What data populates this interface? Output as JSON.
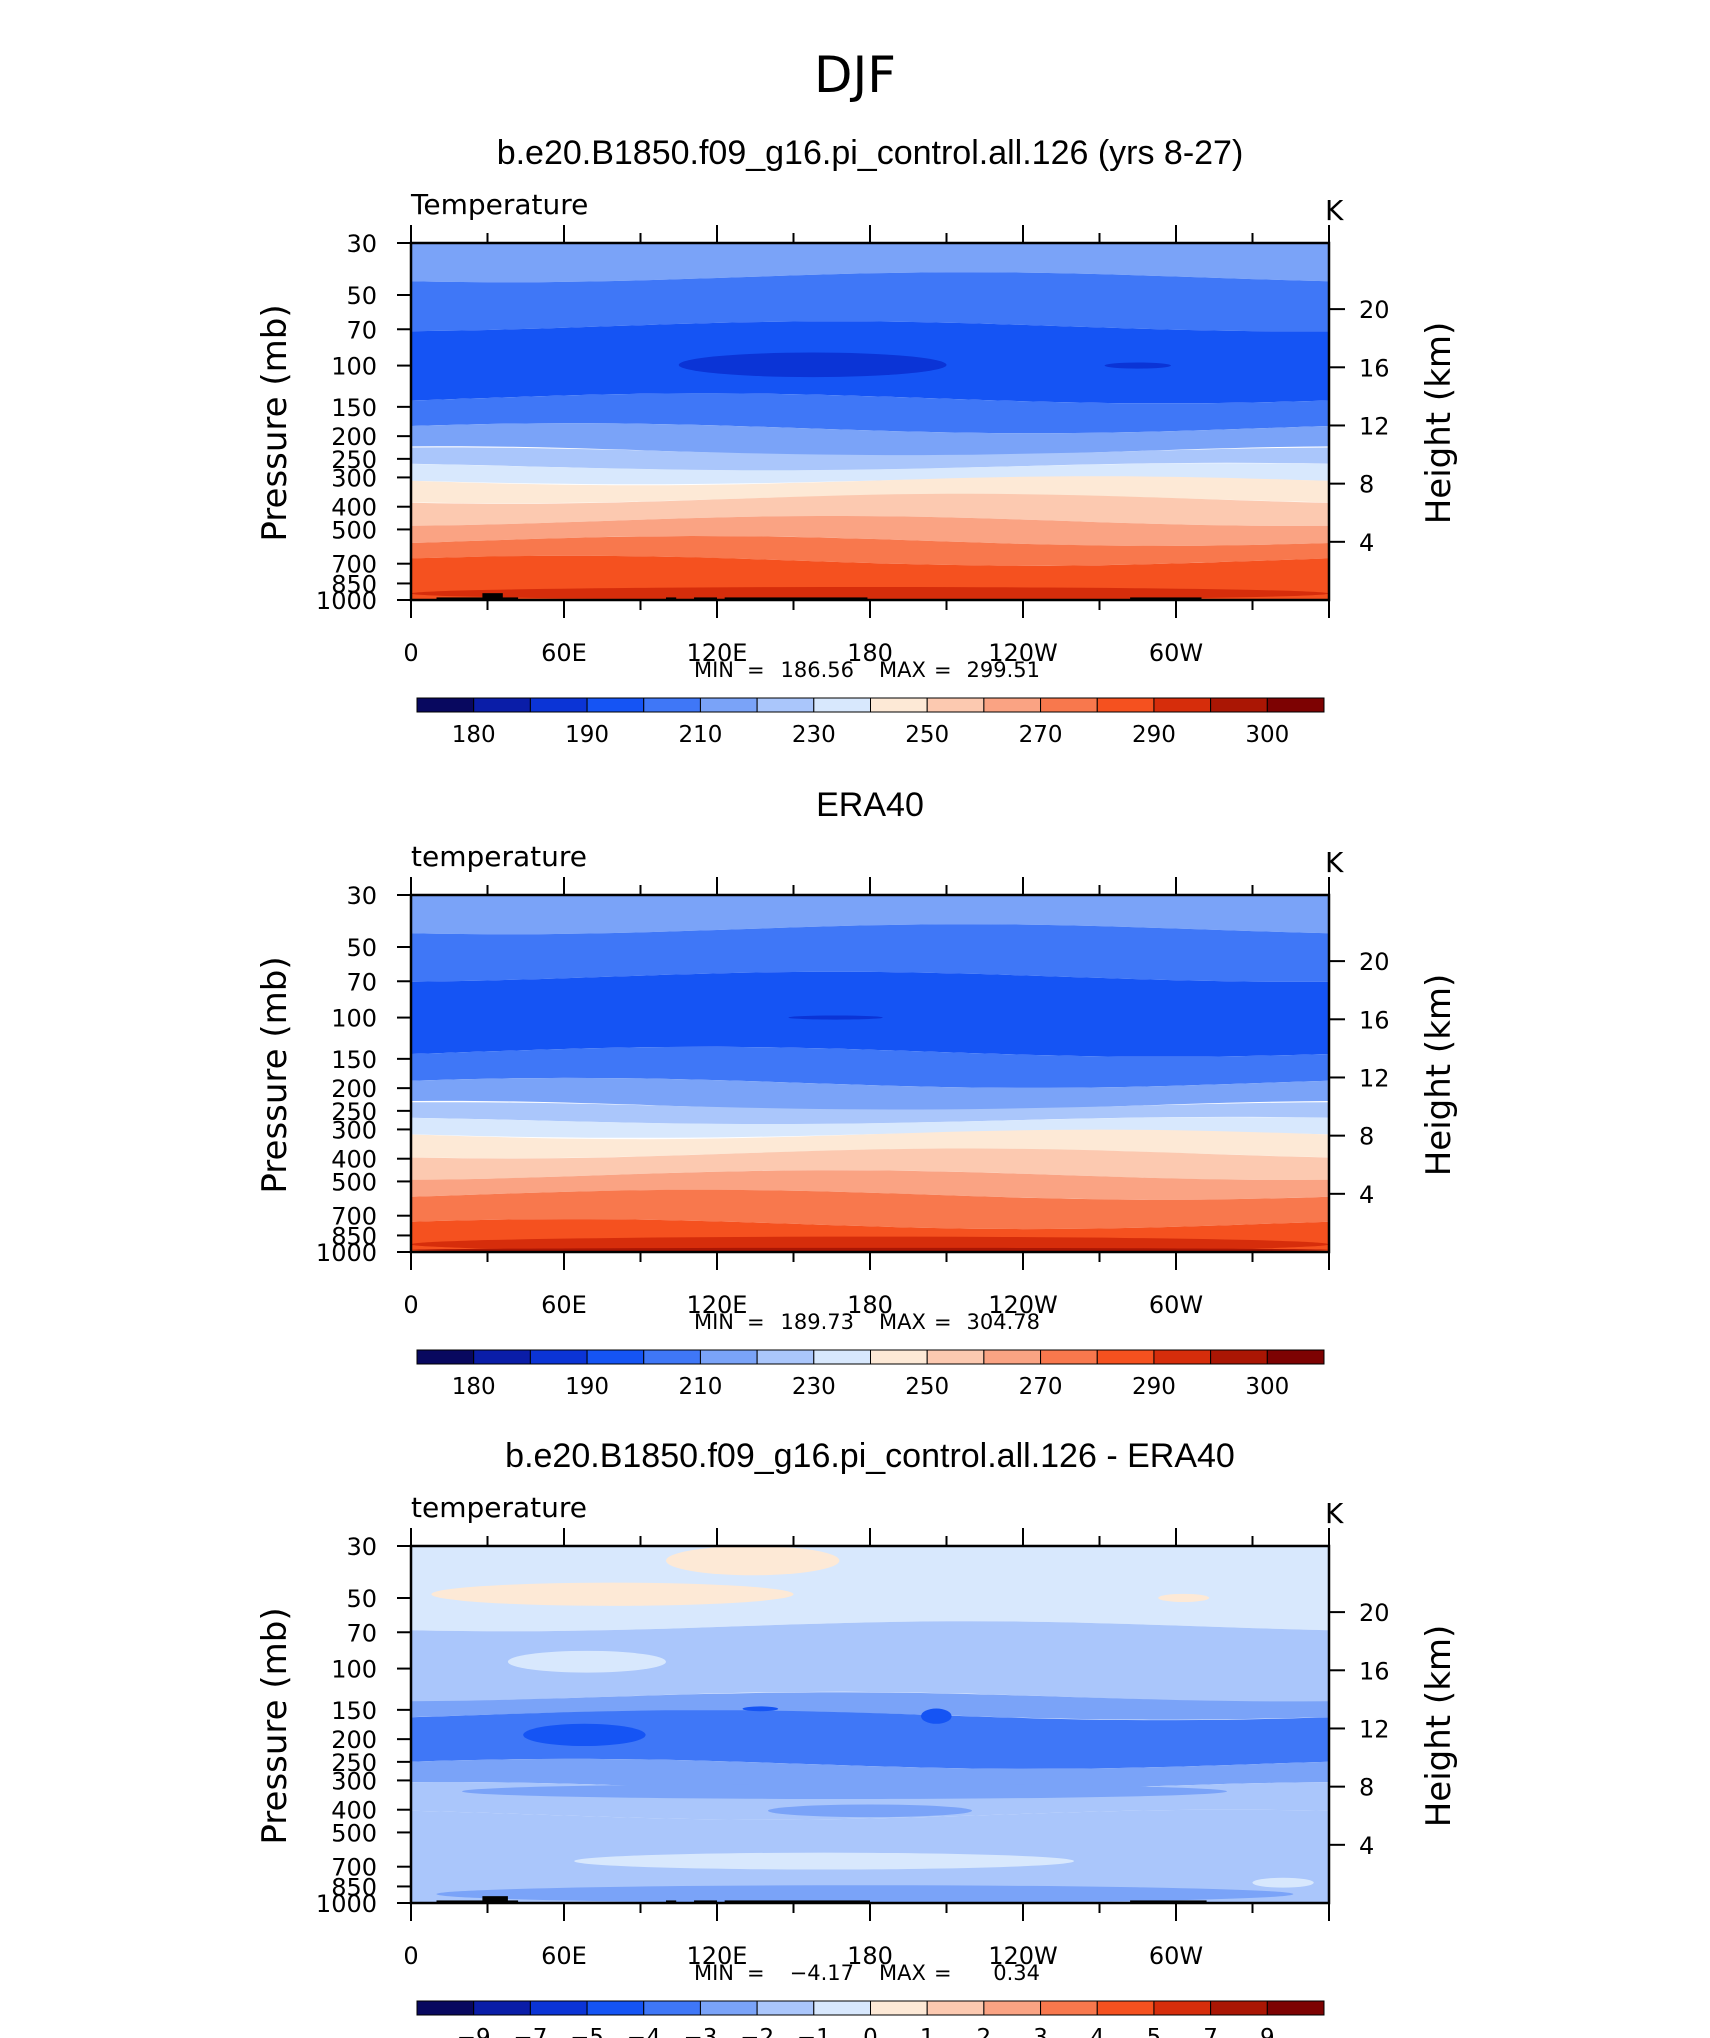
{
  "figure": {
    "suptitle": "DJF"
  },
  "colors": {
    "levels": [
      "#08085f",
      "#0a1da8",
      "#0b34d6",
      "#1554f4",
      "#3f77f7",
      "#7aa3f8",
      "#aac6fb",
      "#d8e8fd",
      "#fde9d6",
      "#fcc9b0",
      "#faa383",
      "#f8784d",
      "#f5511f",
      "#d62d0b",
      "#aa1604",
      "#7d0202"
    ],
    "land": "#000000"
  },
  "chart_data": [
    {
      "type": "contour",
      "title": "b.e20.B1850.f09_g16.pi_control.all.126 (yrs 8-27)",
      "variable_label": "Temperature",
      "units": "K",
      "ylabel": "Pressure (mb)",
      "ylabel_right": "Height (km)",
      "x_ticks": [
        "0",
        "60E",
        "120E",
        "180",
        "120W",
        "60W"
      ],
      "y_ticks": [
        "30",
        "50",
        "70",
        "100",
        "150",
        "200",
        "250",
        "300",
        "400",
        "500",
        "700",
        "850",
        "1000"
      ],
      "height_ticks": [
        "20",
        "16",
        "12",
        "8",
        "4"
      ],
      "min_label": "MIN",
      "max_label": "MAX",
      "min": "186.56",
      "max": "299.51",
      "colorbar_labels": [
        "180",
        "190",
        "210",
        "230",
        "250",
        "270",
        "290",
        "300"
      ],
      "layers": [
        {
          "from_p": 30,
          "to_p": 42,
          "level": 5
        },
        {
          "from_p": 42,
          "to_p": 68,
          "level": 4
        },
        {
          "from_p": 68,
          "to_p": 138,
          "level": 3
        },
        {
          "from_p": 138,
          "to_p": 185,
          "level": 4
        },
        {
          "from_p": 185,
          "to_p": 232,
          "level": 5
        },
        {
          "from_p": 232,
          "to_p": 270,
          "level": 6
        },
        {
          "from_p": 270,
          "to_p": 310,
          "level": 7
        },
        {
          "from_p": 310,
          "to_p": 370,
          "level": 8
        },
        {
          "from_p": 370,
          "to_p": 460,
          "level": 9
        },
        {
          "from_p": 460,
          "to_p": 560,
          "level": 10
        },
        {
          "from_p": 560,
          "to_p": 680,
          "level": 11
        },
        {
          "from_p": 680,
          "to_p": 1000,
          "level": 12
        }
      ],
      "blobs": [
        {
          "lon0": 105,
          "lon1": 210,
          "p0": 88,
          "p1": 112,
          "level": 2
        },
        {
          "lon0": 272,
          "lon1": 298,
          "p0": 97,
          "p1": 103,
          "level": 2
        },
        {
          "lon0": 0,
          "lon1": 360,
          "p0": 880,
          "p1": 1000,
          "level": 13
        }
      ],
      "land": [
        {
          "lon0": 10,
          "lon1": 42,
          "p0": 975,
          "p1": 1000
        },
        {
          "lon0": 28,
          "lon1": 36,
          "p0": 935,
          "p1": 1000
        },
        {
          "lon0": 100,
          "lon1": 104,
          "p0": 975,
          "p1": 1000
        },
        {
          "lon0": 111,
          "lon1": 120,
          "p0": 975,
          "p1": 1000
        },
        {
          "lon0": 123,
          "lon1": 179,
          "p0": 975,
          "p1": 1000
        },
        {
          "lon0": 282,
          "lon1": 310,
          "p0": 975,
          "p1": 1000
        }
      ]
    },
    {
      "type": "contour",
      "title": "ERA40",
      "variable_label": "temperature",
      "units": "K",
      "ylabel": "Pressure (mb)",
      "ylabel_right": "Height (km)",
      "x_ticks": [
        "0",
        "60E",
        "120E",
        "180",
        "120W",
        "60W"
      ],
      "y_ticks": [
        "30",
        "50",
        "70",
        "100",
        "150",
        "200",
        "250",
        "300",
        "400",
        "500",
        "700",
        "850",
        "1000"
      ],
      "height_ticks": [
        "20",
        "16",
        "12",
        "8",
        "4"
      ],
      "min_label": "MIN",
      "max_label": "MAX",
      "min": "189.73",
      "max": "304.78",
      "colorbar_labels": [
        "180",
        "190",
        "210",
        "230",
        "250",
        "270",
        "290",
        "300"
      ],
      "layers": [
        {
          "from_p": 30,
          "to_p": 42,
          "level": 5
        },
        {
          "from_p": 42,
          "to_p": 67,
          "level": 4
        },
        {
          "from_p": 67,
          "to_p": 140,
          "level": 3
        },
        {
          "from_p": 140,
          "to_p": 190,
          "level": 4
        },
        {
          "from_p": 190,
          "to_p": 238,
          "level": 5
        },
        {
          "from_p": 238,
          "to_p": 275,
          "level": 6
        },
        {
          "from_p": 275,
          "to_p": 315,
          "level": 7
        },
        {
          "from_p": 315,
          "to_p": 380,
          "level": 8
        },
        {
          "from_p": 380,
          "to_p": 470,
          "level": 9
        },
        {
          "from_p": 470,
          "to_p": 570,
          "level": 10
        },
        {
          "from_p": 570,
          "to_p": 760,
          "level": 11
        },
        {
          "from_p": 760,
          "to_p": 1000,
          "level": 12
        }
      ],
      "blobs": [
        {
          "lon0": 148,
          "lon1": 185,
          "p0": 98,
          "p1": 102,
          "level": 2
        },
        {
          "lon0": 0,
          "lon1": 360,
          "p0": 860,
          "p1": 1000,
          "level": 13
        },
        {
          "lon0": 0,
          "lon1": 360,
          "p0": 960,
          "p1": 1000,
          "level": 14
        }
      ],
      "land": []
    },
    {
      "type": "contour",
      "title": "b.e20.B1850.f09_g16.pi_control.all.126 - ERA40",
      "variable_label": "temperature",
      "units": "K",
      "ylabel": "Pressure (mb)",
      "ylabel_right": "Height (km)",
      "x_ticks": [
        "0",
        "60E",
        "120E",
        "180",
        "120W",
        "60W"
      ],
      "y_ticks": [
        "30",
        "50",
        "70",
        "100",
        "150",
        "200",
        "250",
        "300",
        "400",
        "500",
        "700",
        "850",
        "1000"
      ],
      "height_ticks": [
        "20",
        "16",
        "12",
        "8",
        "4"
      ],
      "min_label": "MIN",
      "max_label": "MAX",
      "min": "−4.17",
      "max": "0.34",
      "colorbar_labels": [
        "−9",
        "−7",
        "−5",
        "−4",
        "−3",
        "−2",
        "−1",
        "0",
        "1",
        "2",
        "3",
        "4",
        "5",
        "7",
        "9"
      ],
      "layers": [
        {
          "from_p": 30,
          "to_p": 66,
          "level": 7
        },
        {
          "from_p": 66,
          "to_p": 132,
          "level": 6
        },
        {
          "from_p": 132,
          "to_p": 158,
          "level": 5
        },
        {
          "from_p": 158,
          "to_p": 255,
          "level": 4
        },
        {
          "from_p": 255,
          "to_p": 320,
          "level": 5
        },
        {
          "from_p": 320,
          "to_p": 420,
          "level": 6
        },
        {
          "from_p": 420,
          "to_p": 1000,
          "level": 6
        }
      ],
      "blobs": [
        {
          "lon0": 100,
          "lon1": 168,
          "p0": 30,
          "p1": 40,
          "level": 8
        },
        {
          "lon0": 8,
          "lon1": 150,
          "p0": 43,
          "p1": 54,
          "level": 8
        },
        {
          "lon0": 293,
          "lon1": 313,
          "p0": 48,
          "p1": 52,
          "level": 8
        },
        {
          "lon0": 36,
          "lon1": 190,
          "p0": 74,
          "p1": 120,
          "level": 6
        },
        {
          "lon0": 38,
          "lon1": 100,
          "p0": 84,
          "p1": 104,
          "level": 7
        },
        {
          "lon0": 20,
          "lon1": 320,
          "p0": 310,
          "p1": 360,
          "level": 5
        },
        {
          "lon0": 44,
          "lon1": 92,
          "p0": 172,
          "p1": 214,
          "level": 3
        },
        {
          "lon0": 200,
          "lon1": 212,
          "p0": 148,
          "p1": 172,
          "level": 3
        },
        {
          "lon0": 130,
          "lon1": 144,
          "p0": 145,
          "p1": 152,
          "level": 3
        },
        {
          "lon0": 64,
          "lon1": 260,
          "p0": 610,
          "p1": 720,
          "level": 7
        },
        {
          "lon0": 140,
          "lon1": 220,
          "p0": 380,
          "p1": 430,
          "level": 5
        },
        {
          "lon0": 330,
          "lon1": 354,
          "p0": 780,
          "p1": 860,
          "level": 7
        },
        {
          "lon0": 10,
          "lon1": 346,
          "p0": 840,
          "p1": 1000,
          "level": 5
        }
      ],
      "land": [
        {
          "lon0": 10,
          "lon1": 42,
          "p0": 975,
          "p1": 1000
        },
        {
          "lon0": 28,
          "lon1": 38,
          "p0": 935,
          "p1": 1000
        },
        {
          "lon0": 100,
          "lon1": 104,
          "p0": 975,
          "p1": 1000
        },
        {
          "lon0": 111,
          "lon1": 120,
          "p0": 975,
          "p1": 1000
        },
        {
          "lon0": 123,
          "lon1": 180,
          "p0": 975,
          "p1": 1000
        },
        {
          "lon0": 282,
          "lon1": 312,
          "p0": 975,
          "p1": 1000
        }
      ]
    }
  ]
}
